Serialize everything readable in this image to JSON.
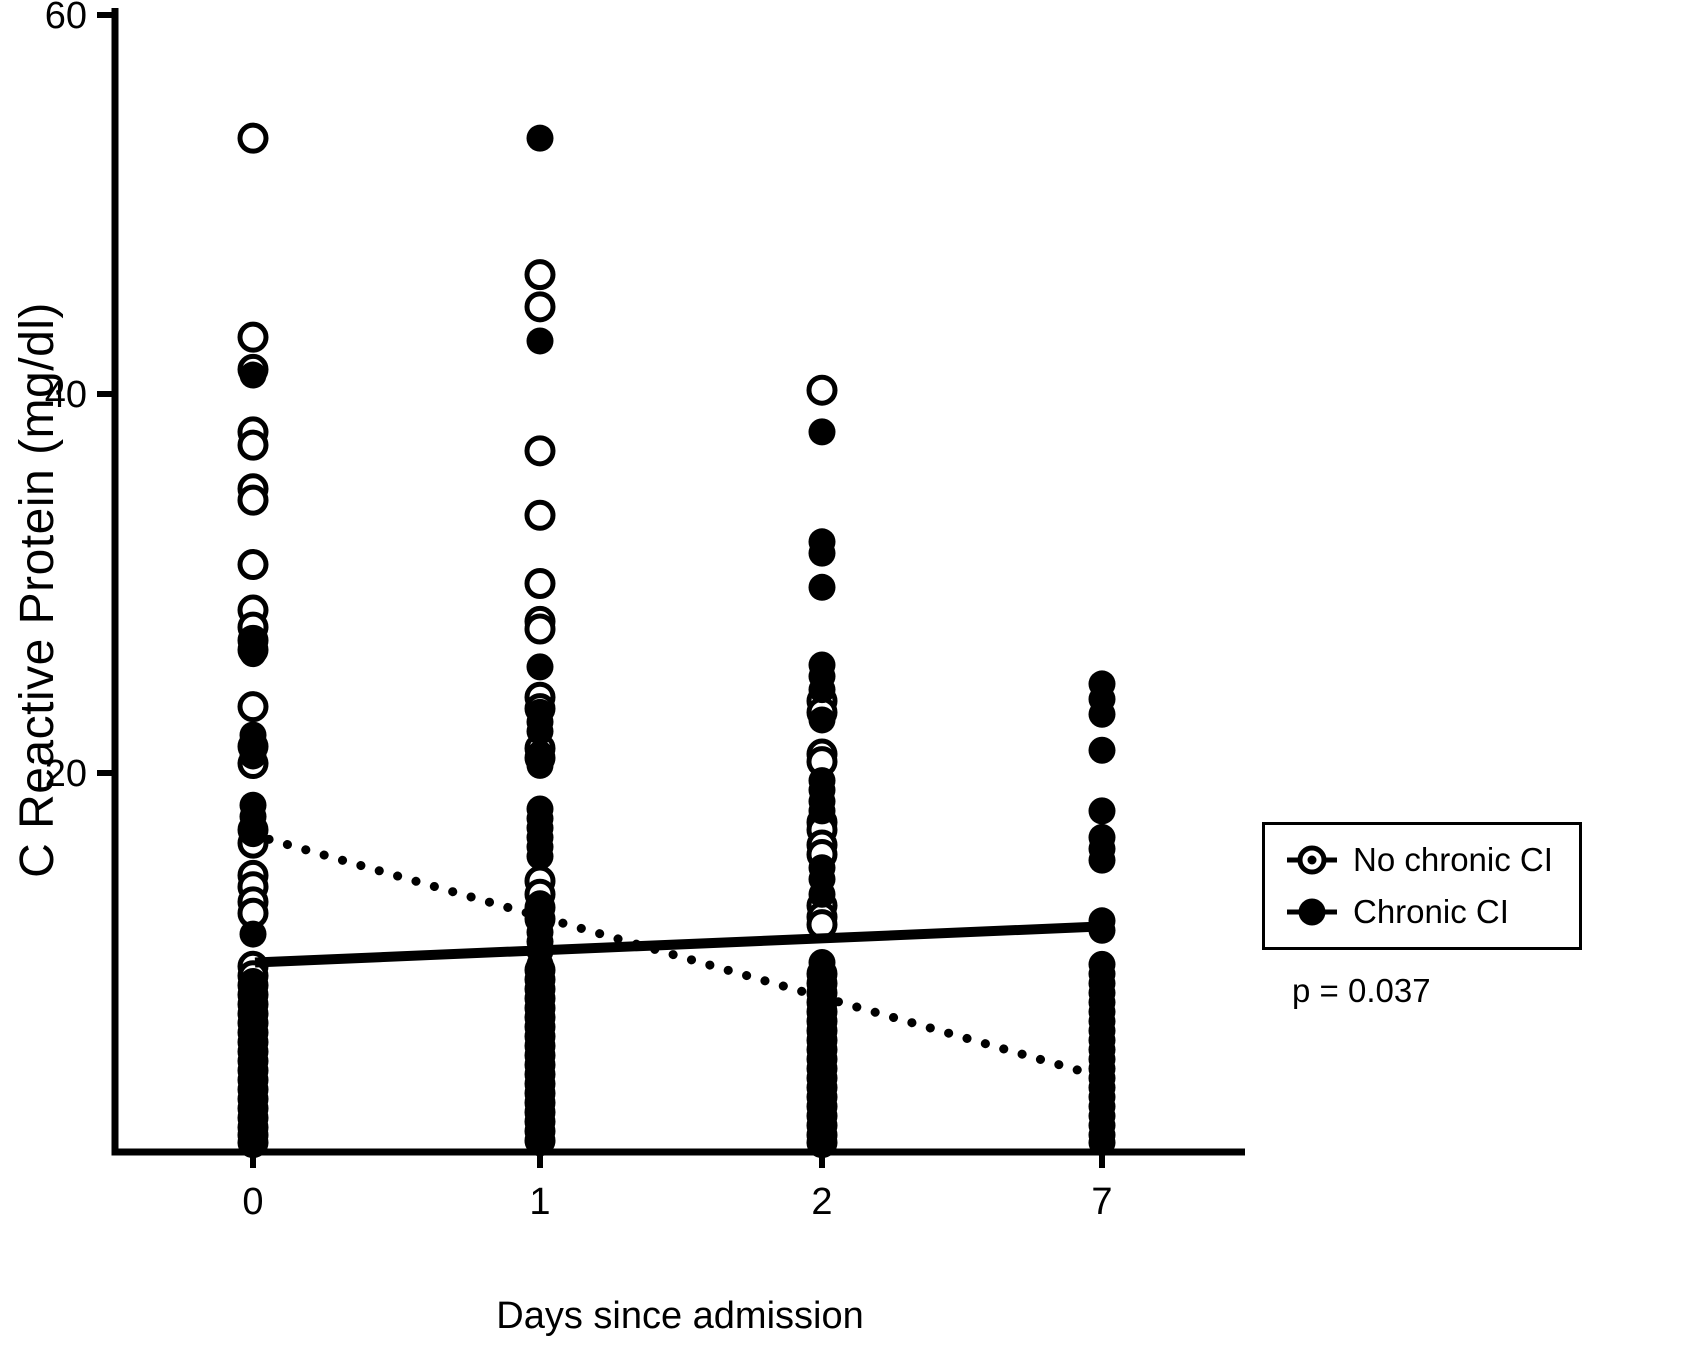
{
  "chart_data": {
    "type": "scatter",
    "title": "",
    "xlabel": "Days since admission",
    "ylabel": "C Reactive Protein (mg/dl)",
    "x_categories": [
      "0",
      "1",
      "2",
      "7"
    ],
    "ylim": [
      0,
      60
    ],
    "yticks": [
      20,
      40,
      60
    ],
    "grid": false,
    "series": [
      {
        "name": "No chronic CI",
        "marker": "open",
        "values_by_day": {
          "0": [
            53.5,
            43.0,
            41.3,
            38.0,
            37.3,
            35.0,
            34.4,
            31.0,
            28.6,
            27.7,
            27.0,
            26.5,
            23.5,
            21.4,
            20.5,
            17.0,
            16.3,
            14.6,
            14.0,
            13.2,
            12.6,
            9.8,
            9.3,
            8.8,
            8.3,
            7.8,
            7.3,
            6.8,
            6.3,
            5.8,
            5.3,
            4.8,
            4.3,
            3.8,
            3.3,
            2.8,
            2.3,
            1.8,
            1.3,
            0.9,
            0.5
          ],
          "1": [
            46.3,
            44.6,
            37.0,
            33.6,
            30.0,
            28.0,
            27.6,
            24.0,
            23.4,
            21.3,
            20.8,
            14.3,
            13.6,
            12.9,
            12.3,
            9.6,
            9.1,
            8.6,
            8.1,
            7.6,
            7.1,
            6.6,
            6.1,
            5.6,
            5.1,
            4.6,
            4.1,
            3.6,
            3.1,
            2.6,
            2.1,
            1.6,
            1.1,
            0.6
          ],
          "2": [
            40.2,
            23.8,
            23.2,
            21.0,
            20.6,
            17.4,
            17.0,
            16.2,
            15.7,
            13.0,
            12.4,
            12.0,
            9.4,
            8.9,
            8.4,
            7.9,
            7.4,
            6.9,
            6.4,
            5.9,
            5.4,
            4.9,
            4.4,
            3.9,
            3.4,
            2.9,
            2.4,
            1.9,
            1.4,
            0.9,
            0.5
          ],
          "7": []
        }
      },
      {
        "name": "Chronic CI",
        "marker": "filled",
        "values_by_day": {
          "0": [
            41.0,
            26.9,
            26.3,
            22.0,
            21.5,
            20.9,
            18.3,
            17.7,
            16.8,
            11.5,
            9.0,
            8.4,
            7.7,
            7.0,
            6.4,
            5.7,
            5.0,
            4.4,
            3.7,
            3.0,
            2.4,
            1.8,
            1.2,
            0.6
          ],
          "1": [
            53.5,
            42.8,
            25.6,
            23.2,
            22.7,
            22.2,
            21.0,
            20.4,
            18.1,
            17.6,
            17.1,
            16.6,
            16.1,
            15.6,
            13.1,
            12.2,
            11.6,
            11.1,
            10.6,
            9.9,
            9.4,
            8.9,
            8.4,
            7.9,
            7.4,
            6.9,
            6.4,
            5.9,
            5.4,
            4.9,
            4.4,
            3.9,
            3.4,
            2.9,
            2.4,
            1.9,
            1.4,
            0.9,
            0.5
          ],
          "2": [
            38.0,
            32.2,
            31.6,
            29.8,
            25.7,
            25.1,
            24.4,
            22.8,
            19.6,
            19.1,
            18.5,
            18.0,
            15.0,
            14.4,
            13.6,
            10.0,
            9.5,
            9.0,
            8.5,
            8.0,
            7.5,
            7.0,
            6.5,
            6.0,
            5.5,
            5.0,
            4.5,
            4.0,
            3.5,
            3.0,
            2.5,
            2.0,
            1.5,
            1.0,
            0.5
          ],
          "7": [
            24.7,
            23.9,
            23.1,
            21.2,
            18.0,
            16.6,
            16.0,
            15.4,
            12.2,
            11.7,
            9.9,
            9.4,
            8.9,
            8.4,
            7.9,
            7.4,
            6.9,
            6.4,
            5.9,
            5.4,
            4.9,
            4.4,
            3.9,
            3.4,
            2.9,
            2.4,
            1.9,
            1.4,
            0.9,
            0.5
          ]
        }
      }
    ],
    "trend_lines": [
      {
        "series": "No chronic CI",
        "style": "dotted",
        "start": {
          "day": "0",
          "y": 16.5
        },
        "end": {
          "day": "7",
          "y": 4.2
        }
      },
      {
        "series": "Chronic CI",
        "style": "solid",
        "start": {
          "day": "0",
          "y": 10.0
        },
        "end": {
          "day": "7",
          "y": 11.9
        }
      }
    ],
    "legend": {
      "position": "right",
      "entries": [
        {
          "label": "No chronic CI",
          "marker": "open-dot"
        },
        {
          "label": "Chronic CI",
          "marker": "filled"
        }
      ]
    },
    "annotations": [
      {
        "text": "p = 0.037"
      }
    ]
  }
}
